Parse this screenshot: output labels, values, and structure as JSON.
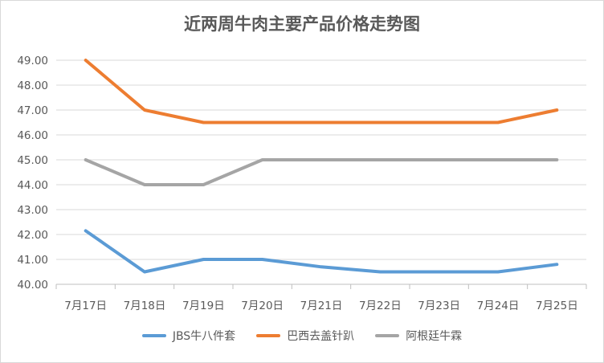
{
  "chart_data": {
    "type": "line",
    "title": "近两周牛肉主要产品价格走势图",
    "xlabel": "",
    "ylabel": "",
    "categories": [
      "7月17日",
      "7月18日",
      "7月19日",
      "7月20日",
      "7月21日",
      "7月22日",
      "7月23日",
      "7月24日",
      "7月25日"
    ],
    "ylim": [
      40,
      49
    ],
    "ytick_step": 1,
    "ytick_labels": [
      "40.00",
      "41.00",
      "42.00",
      "43.00",
      "44.00",
      "45.00",
      "46.00",
      "47.00",
      "48.00",
      "49.00"
    ],
    "grid": true,
    "legend_position": "bottom",
    "series": [
      {
        "name": "JBS牛八件套",
        "color": "#5b9bd5",
        "values": [
          42.15,
          40.5,
          41.0,
          41.0,
          40.7,
          40.5,
          40.5,
          40.5,
          40.8
        ]
      },
      {
        "name": "巴西去盖针趴",
        "color": "#ed7d31",
        "values": [
          49.0,
          47.0,
          46.5,
          46.5,
          46.5,
          46.5,
          46.5,
          46.5,
          47.0
        ]
      },
      {
        "name": "阿根廷牛霖",
        "color": "#a5a5a5",
        "values": [
          45.0,
          44.0,
          44.0,
          45.0,
          45.0,
          45.0,
          45.0,
          45.0,
          45.0
        ]
      }
    ]
  }
}
